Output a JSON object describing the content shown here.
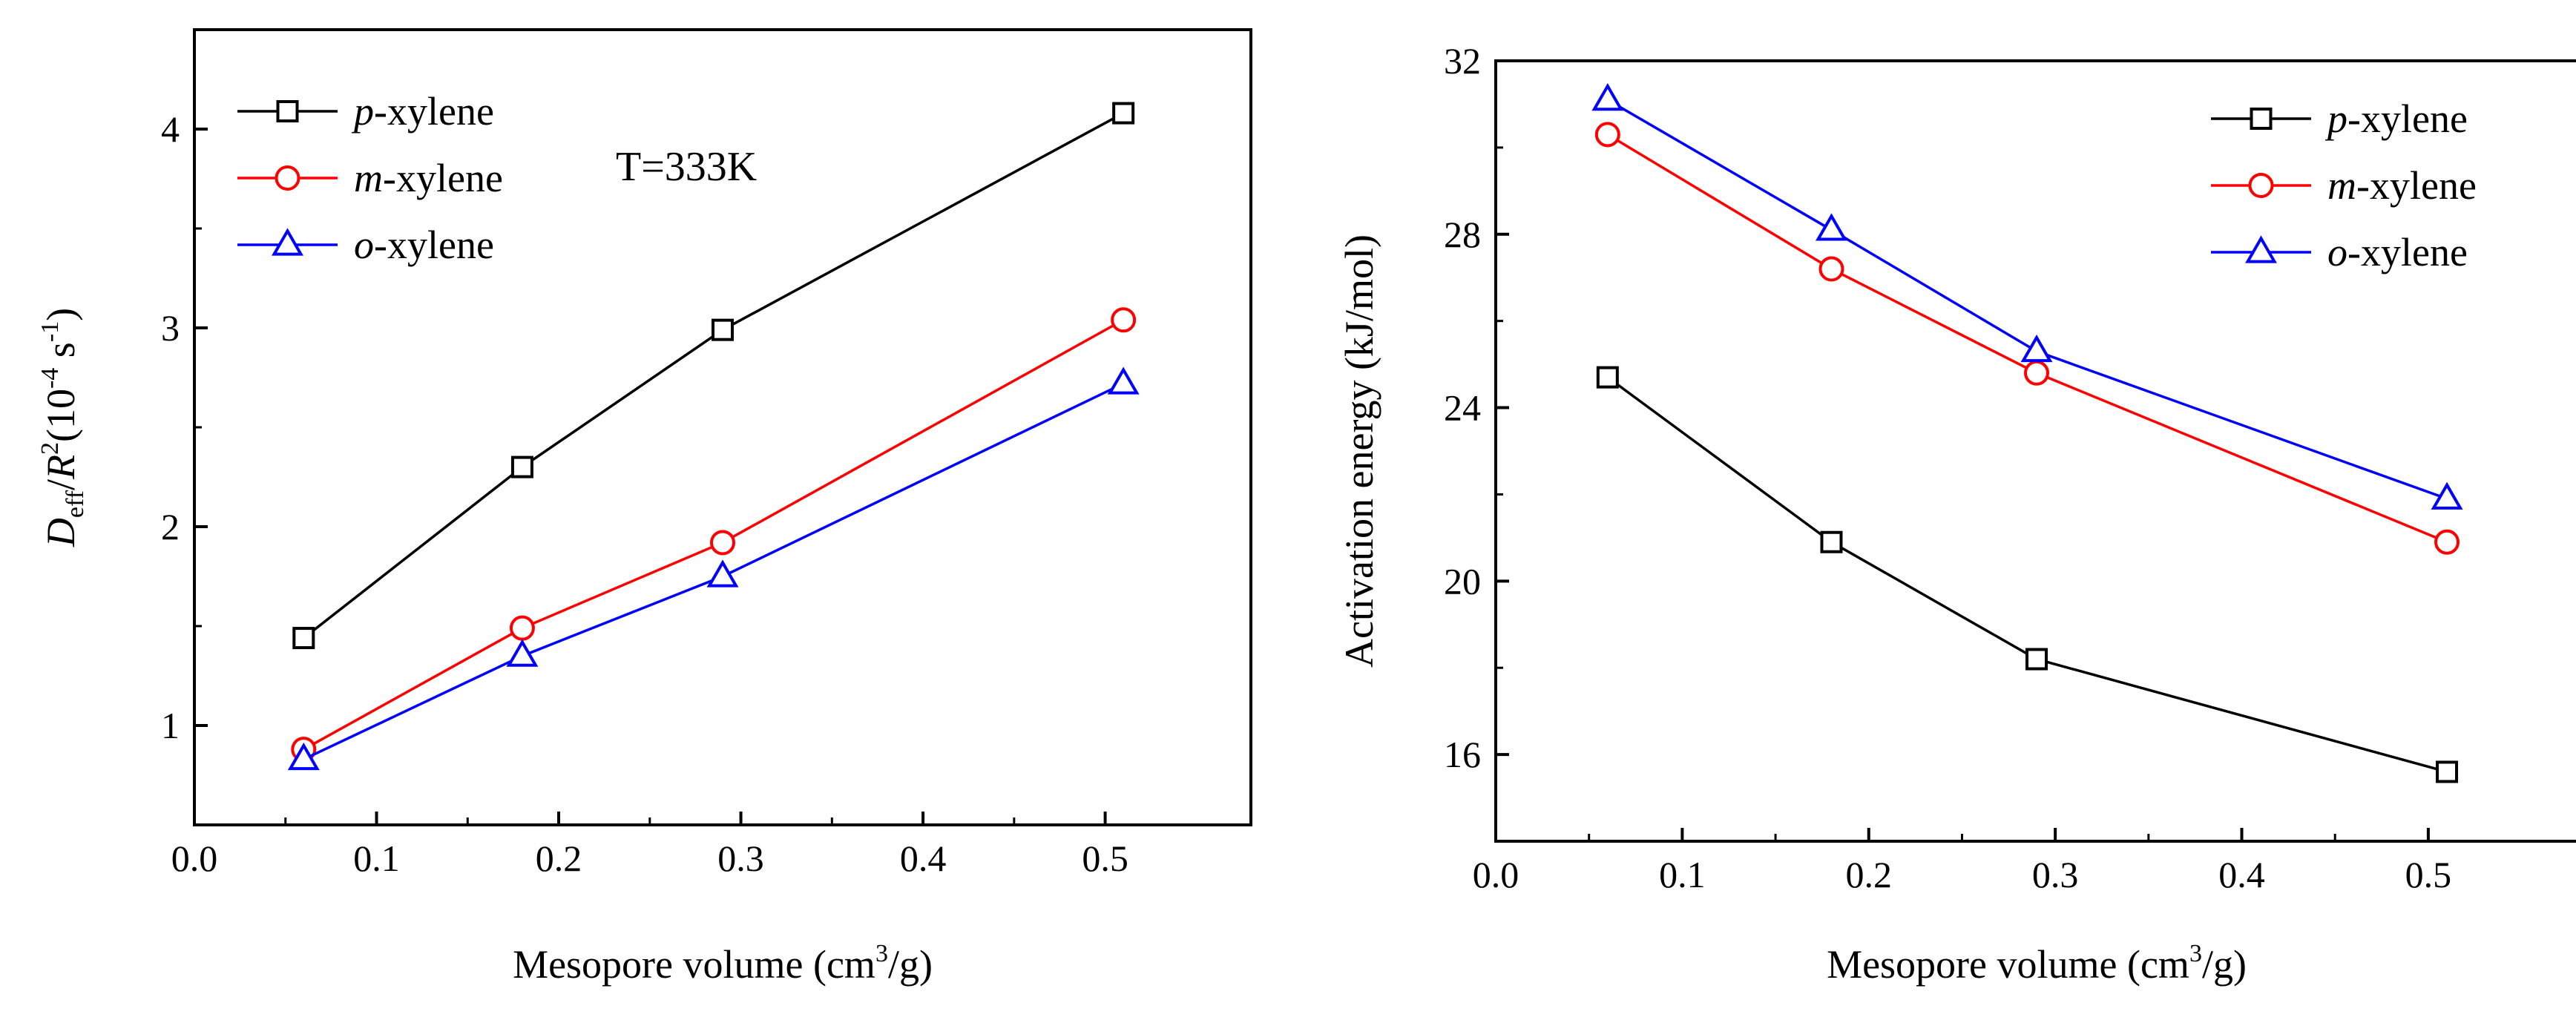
{
  "chart_data": [
    {
      "type": "line",
      "xlabel": "Mesopore volume  (cm3/g)",
      "xlabel_parts": [
        "Mesopore volume  (cm",
        "3",
        "/g)"
      ],
      "ylabel": "Deff/R2(10-4 s-1)",
      "ylabel_parts": [
        "D",
        "eff",
        "/",
        "R",
        "2",
        "(10",
        "-4",
        " s",
        "-1",
        ")"
      ],
      "xlim": [
        0.0,
        0.58
      ],
      "ylim": [
        0.5,
        4.5
      ],
      "xticks": [
        0.0,
        0.1,
        0.2,
        0.3,
        0.4,
        0.5
      ],
      "xtick_labels": [
        "0.0",
        "0.1",
        "0.2",
        "0.3",
        "0.4",
        "0.5"
      ],
      "yticks": [
        1,
        2,
        3,
        4
      ],
      "ytick_labels": [
        "1",
        "2",
        "3",
        "4"
      ],
      "annotation": "T=333K",
      "legend_position": "top-left",
      "grid": false,
      "x": [
        0.06,
        0.18,
        0.29,
        0.51
      ],
      "series": [
        {
          "name": "p-xylene",
          "prefix": "p",
          "suffix": "-xylene",
          "color": "#000000",
          "marker": "square",
          "values": [
            1.44,
            2.3,
            2.99,
            4.08
          ]
        },
        {
          "name": "m-xylene",
          "prefix": "m",
          "suffix": "-xylene",
          "color": "#ff0000",
          "marker": "circle",
          "values": [
            0.88,
            1.49,
            1.92,
            3.04
          ]
        },
        {
          "name": "o-xylene",
          "prefix": "o",
          "suffix": "-xylene",
          "color": "#0000ff",
          "marker": "triangle",
          "values": [
            0.83,
            1.35,
            1.75,
            2.72
          ]
        }
      ]
    },
    {
      "type": "line",
      "xlabel": "Mesopore volume (cm3/g)",
      "xlabel_parts": [
        "Mesopore volume (cm",
        "3",
        "/g)"
      ],
      "ylabel": "Activation energy (kJ/mol)",
      "xlim": [
        0.0,
        0.58
      ],
      "ylim": [
        14,
        32
      ],
      "xticks": [
        0.0,
        0.1,
        0.2,
        0.3,
        0.4,
        0.5
      ],
      "xtick_labels": [
        "0.0",
        "0.1",
        "0.2",
        "0.3",
        "0.4",
        "0.5"
      ],
      "yticks": [
        16,
        20,
        24,
        28,
        32
      ],
      "ytick_labels": [
        "16",
        "20",
        "24",
        "28",
        "32"
      ],
      "legend_position": "top-right",
      "grid": false,
      "x": [
        0.06,
        0.18,
        0.29,
        0.51
      ],
      "series": [
        {
          "name": "p-xylene",
          "prefix": "p",
          "suffix": "-xylene",
          "color": "#000000",
          "marker": "square",
          "values": [
            24.7,
            20.9,
            18.2,
            15.6
          ]
        },
        {
          "name": "m-xylene",
          "prefix": "m",
          "suffix": "-xylene",
          "color": "#ff0000",
          "marker": "circle",
          "values": [
            30.3,
            27.2,
            24.8,
            20.9
          ]
        },
        {
          "name": "o-xylene",
          "prefix": "o",
          "suffix": "-xylene",
          "color": "#0000ff",
          "marker": "triangle",
          "values": [
            31.1,
            28.1,
            25.3,
            21.9
          ]
        }
      ]
    }
  ]
}
